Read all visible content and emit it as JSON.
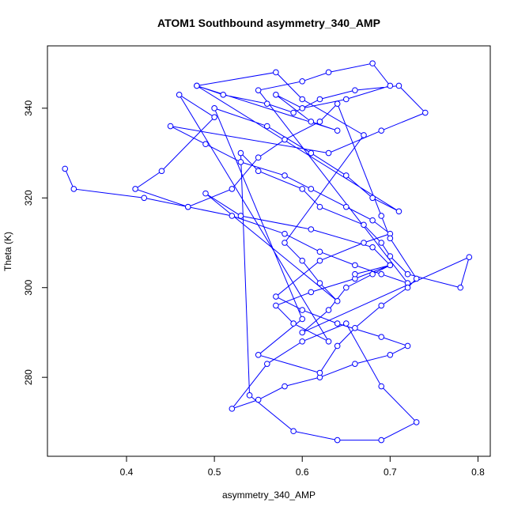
{
  "chart_data": {
    "type": "line-points",
    "title": "ATOM1 Southbound asymmetry_340_AMP",
    "xlabel": "asymmetry_340_AMP",
    "ylabel": "Theta (K)",
    "color": "#0000ff",
    "xlim": [
      0.31,
      0.814
    ],
    "ylim": [
      262.4,
      353.9
    ],
    "xticks": [
      0.4,
      0.5,
      0.6,
      0.7,
      0.8
    ],
    "yticks": [
      280,
      300,
      320,
      340
    ],
    "x": [
      0.33,
      0.34,
      0.42,
      0.47,
      0.52,
      0.58,
      0.62,
      0.66,
      0.69,
      0.72,
      0.55,
      0.6,
      0.63,
      0.68,
      0.7,
      0.65,
      0.6,
      0.57,
      0.61,
      0.64,
      0.48,
      0.51,
      0.56,
      0.59,
      0.62,
      0.66,
      0.71,
      0.74,
      0.69,
      0.63,
      0.45,
      0.49,
      0.53,
      0.58,
      0.61,
      0.65,
      0.68,
      0.7,
      0.67,
      0.62,
      0.57,
      0.6,
      0.64,
      0.69,
      0.72,
      0.7,
      0.66,
      0.62,
      0.58,
      0.55,
      0.52,
      0.56,
      0.6,
      0.65,
      0.69,
      0.73,
      0.69,
      0.64,
      0.59,
      0.54,
      0.53,
      0.55,
      0.6,
      0.62,
      0.67,
      0.69,
      0.7,
      0.72,
      0.78,
      0.79,
      0.6,
      0.63,
      0.65,
      0.68,
      0.7,
      0.66,
      0.61,
      0.57,
      0.59,
      0.63,
      0.46,
      0.5,
      0.44,
      0.41,
      0.47,
      0.52,
      0.55,
      0.58,
      0.62,
      0.64,
      0.69,
      0.7,
      0.73,
      0.72,
      0.69,
      0.66,
      0.64,
      0.62,
      0.55,
      0.6,
      0.5,
      0.56,
      0.61,
      0.65,
      0.68,
      0.71,
      0.48,
      0.57,
      0.6,
      0.67,
      0.58,
      0.6,
      0.62,
      0.64,
      0.49,
      0.53,
      0.61,
      0.68,
      0.7,
      0.66
    ],
    "y": [
      326.5,
      322,
      320,
      318,
      316,
      312,
      308,
      305,
      303,
      301,
      344,
      346,
      348,
      350,
      345,
      342,
      340,
      343,
      337,
      335,
      345,
      343,
      341,
      339,
      342,
      344,
      345,
      339,
      335,
      330,
      336,
      332,
      328,
      325,
      322,
      318,
      315,
      312,
      310,
      306,
      298,
      295,
      292,
      289,
      287,
      285,
      283,
      280,
      278,
      275,
      273,
      283,
      288,
      292,
      278,
      270,
      266,
      266,
      268,
      276,
      330,
      326,
      322,
      318,
      314,
      310,
      307,
      303,
      300,
      306.8,
      290,
      295,
      300,
      303,
      305,
      302,
      299,
      296,
      292,
      288,
      343,
      338,
      326,
      322,
      318,
      322,
      329,
      333,
      337,
      341,
      316,
      311,
      302,
      300,
      296,
      291,
      287,
      281,
      285,
      293,
      340,
      336,
      330,
      325,
      320,
      317,
      345,
      348,
      342,
      334,
      310,
      306,
      301,
      297,
      321,
      316,
      313,
      309,
      305,
      303
    ]
  }
}
